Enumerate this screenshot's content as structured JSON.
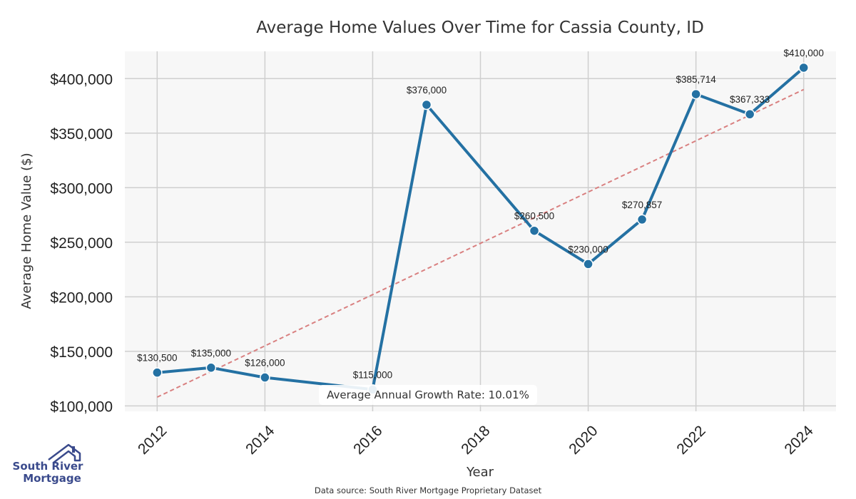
{
  "chart_data": {
    "type": "line",
    "title": "Average Home Values Over Time for Cassia County, ID",
    "xlabel": "Year",
    "ylabel": "Average Home Value ($)",
    "x": [
      2012,
      2013,
      2014,
      2016,
      2017,
      2019,
      2020,
      2021,
      2022,
      2023,
      2024
    ],
    "series": [
      {
        "values": [
          130500,
          135000,
          126000,
          115000,
          376000,
          260500,
          230000,
          270857,
          385714,
          367333,
          410000
        ],
        "labels": [
          "$130,500",
          "$135,000",
          "$126,000",
          "$115,000",
          "$376,000",
          "$260,500",
          "$230,000",
          "$270,857",
          "$385,714",
          "$367,333",
          "$410,000"
        ],
        "color": "#2471a3"
      }
    ],
    "trendline": {
      "start": [
        2012,
        108000
      ],
      "end": [
        2024,
        390000
      ],
      "color": "#d98080",
      "style": "dashed"
    },
    "xticks": [
      2012,
      2014,
      2016,
      2018,
      2020,
      2022,
      2024
    ],
    "xtick_labels": [
      "2012",
      "2014",
      "2016",
      "2018",
      "2020",
      "2022",
      "2024"
    ],
    "yticks": [
      100000,
      150000,
      200000,
      250000,
      300000,
      350000,
      400000
    ],
    "ytick_labels": [
      "$100,000",
      "$150,000",
      "$200,000",
      "$250,000",
      "$300,000",
      "$350,000",
      "$400,000"
    ],
    "xlim": [
      2011.4,
      2024.6
    ],
    "ylim": [
      95000,
      425000
    ],
    "grid": true,
    "annotation": "Average Annual Growth Rate: 10.01%",
    "source": "Data source: South River Mortgage Proprietary Dataset"
  },
  "logo": {
    "line1": "South River",
    "line2": "Mortgage",
    "color": "#3a4a8c"
  }
}
